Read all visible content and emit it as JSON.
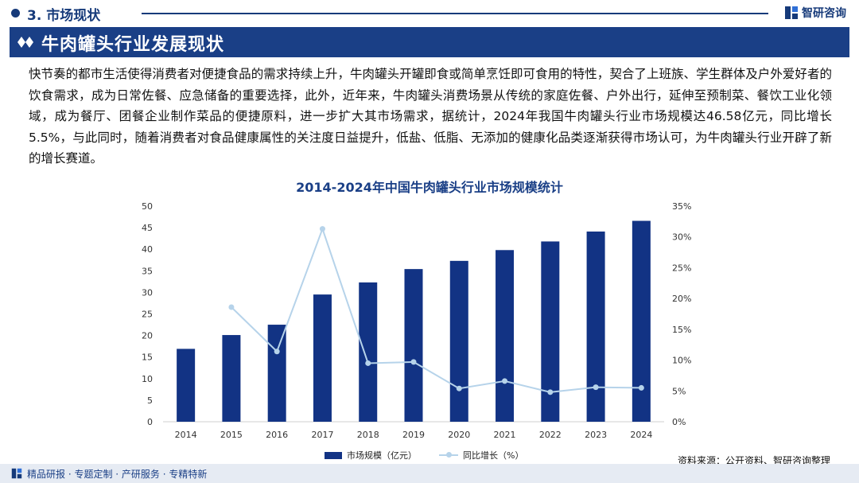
{
  "header": {
    "section_title": "3. 市场现状",
    "brand": "智研咨询",
    "brand_logo_icon": "zhiyan-logo-icon"
  },
  "banner": {
    "title": "牛肉罐头行业发展现状",
    "icon": "double-diamond-icon"
  },
  "body_text": "快节奏的都市生活使得消费者对便捷食品的需求持续上升，牛肉罐头开罐即食或简单烹饪即可食用的特性，契合了上班族、学生群体及户外爱好者的饮食需求，成为日常佐餐、应急储备的重要选择，此外，近年来，牛肉罐头消费场景从传统的家庭佐餐、户外出行，延伸至预制菜、餐饮工业化领域，成为餐厅、团餐企业制作菜品的便捷原料，进一步扩大其市场需求，据统计，2024年我国牛肉罐头行业市场规模达46.58亿元，同比增长5.5%，与此同时，随着消费者对食品健康属性的关注度日益提升，低盐、低脂、无添加的健康化品类逐渐获得市场认可，为牛肉罐头行业开辟了新的增长赛道。",
  "chart_data": {
    "type": "bar",
    "title": "2014-2024年中国牛肉罐头行业市场规模统计",
    "categories": [
      "2014",
      "2015",
      "2016",
      "2017",
      "2018",
      "2019",
      "2020",
      "2021",
      "2022",
      "2023",
      "2024"
    ],
    "series": [
      {
        "name": "市场规模（亿元）",
        "type": "bar",
        "axis": "left",
        "color": "#123384",
        "values": [
          16.9,
          20.1,
          22.5,
          29.5,
          32.3,
          35.4,
          37.3,
          39.8,
          41.8,
          44.1,
          46.58
        ]
      },
      {
        "name": "同比增长（%）",
        "type": "line",
        "axis": "right",
        "color": "#b6d3ea",
        "values": [
          null,
          18.6,
          11.4,
          31.3,
          9.5,
          9.7,
          5.4,
          6.6,
          4.8,
          5.6,
          5.5
        ]
      }
    ],
    "y_left": {
      "min": 0,
      "max": 50,
      "ticks": [
        "0",
        "5",
        "10",
        "15",
        "20",
        "25",
        "30",
        "35",
        "40",
        "45",
        "50"
      ]
    },
    "y_right": {
      "min": 0,
      "max": 35,
      "ticks": [
        "0%",
        "5%",
        "10%",
        "15%",
        "20%",
        "25%",
        "30%",
        "35%"
      ]
    },
    "grid": false,
    "legend_position": "bottom"
  },
  "footer": {
    "source": "资料来源：公开资料、智研咨询整理",
    "services": "精品研报 · 专题定制 · 产研服务 · 专精特新",
    "services_icon": "zhiyan-logo-icon"
  }
}
